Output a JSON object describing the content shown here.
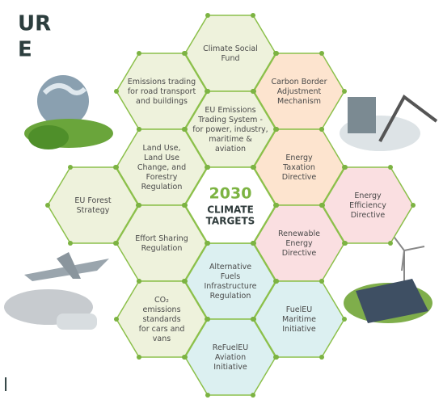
{
  "title_fragments": [
    "UR",
    "E"
  ],
  "footer_fragment": "l",
  "center": {
    "year": "2030",
    "lines": [
      "CLIMATE",
      "TARGETS"
    ],
    "year_color": "#7cb342",
    "text_color": "#2f3b3b"
  },
  "hexagons": [
    {
      "lines": [
        "Climate Social",
        "Fund"
      ],
      "fill": "#eef2dc"
    },
    {
      "lines": [
        "Emissions trading",
        "for road transport",
        "and buildings"
      ],
      "fill": "#eef2dc"
    },
    {
      "lines": [
        "Carbon Border",
        "Adjustment",
        "Mechanism"
      ],
      "fill": "#fde4cf"
    },
    {
      "lines": [
        "EU Emissions",
        "Trading System -",
        "for power, industry,",
        "maritime &",
        "aviation"
      ],
      "fill": "#eef2dc"
    },
    {
      "lines": [
        "Land Use,",
        "Land Use",
        "Change, and",
        "Forestry",
        "Regulation"
      ],
      "fill": "#eef2dc"
    },
    {
      "lines": [
        "Energy",
        "Taxation",
        "Directive"
      ],
      "fill": "#fde4cf"
    },
    {
      "lines": [
        "EU Forest",
        "Strategy"
      ],
      "fill": "#eef2dc"
    },
    {
      "lines": [
        "Energy",
        "Efficiency",
        "Directive"
      ],
      "fill": "#fadfe1"
    },
    {
      "lines": [
        "Effort Sharing",
        "Regulation"
      ],
      "fill": "#eef2dc"
    },
    {
      "lines": [
        "Renewable",
        "Energy",
        "Directive"
      ],
      "fill": "#fadfe1"
    },
    {
      "lines": [
        "Alternative",
        "Fuels",
        "Infrastructure",
        "Regulation"
      ],
      "fill": "#dcf0f1"
    },
    {
      "lines": [
        "CO₂",
        "emissions",
        "standards",
        "for cars and",
        "vans"
      ],
      "fill": "#eef2dc"
    },
    {
      "lines": [
        "FuelEU",
        "Maritime",
        "Initiative"
      ],
      "fill": "#dcf0f1"
    },
    {
      "lines": [
        "ReFuelEU",
        "Aviation",
        "Initiative"
      ],
      "fill": "#dcf0f1"
    }
  ]
}
